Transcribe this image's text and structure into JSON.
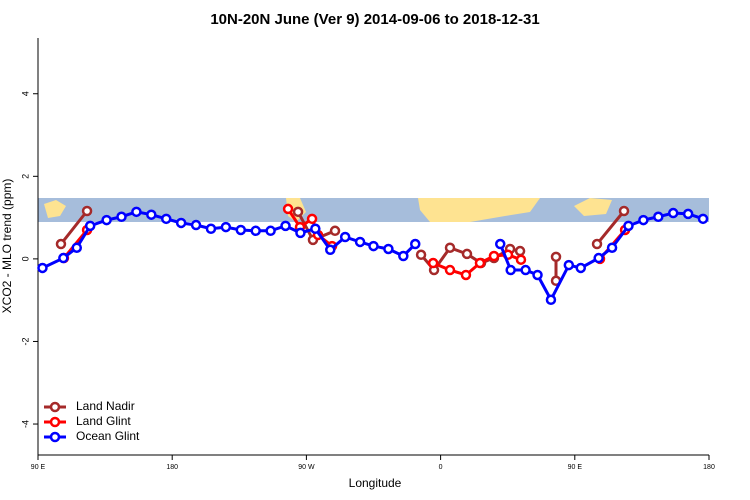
{
  "chart_data": {
    "type": "line",
    "title": "10N-20N June (Ver 9)   2014-09-06 to 2018-12-31",
    "x_label": "Longitude",
    "y_label": "XCO2 - MLO trend (ppm)",
    "xlim": [
      90,
      540
    ],
    "xticks": [
      {
        "value": 90,
        "label": "90 E"
      },
      180,
      {
        "value": 270,
        "label": "90 W"
      },
      {
        "value": 360,
        "label": "0"
      },
      {
        "value": 450,
        "label": "90 E"
      },
      {
        "value": 540,
        "label": "180"
      }
    ],
    "ylim": [
      -4.75,
      5.35
    ],
    "yticks": [
      -4,
      -2,
      0,
      2,
      4
    ],
    "legend": "bottom-left",
    "series": [
      {
        "name": "Land Nadir",
        "color": "#a52a2a",
        "x": [
          105.4,
          122.9,
          null,
          264.4,
          274.4,
          289.2,
          null,
          346.9,
          355.6,
          366.3,
          377.7,
          387.1,
          395.8,
          406.6,
          413.3,
          null,
          437.4,
          437.4,
          null,
          464.9,
          483
        ],
        "values": [
          0.36,
          1.16,
          null,
          1.14,
          0.46,
          0.68,
          null,
          0.1,
          -0.27,
          0.27,
          0.12,
          -0.1,
          0.02,
          0.24,
          0.19,
          null,
          0.05,
          -0.53,
          null,
          0.36,
          1.16
        ]
      },
      {
        "name": "Land Glint",
        "color": "#ff0000",
        "x": [
          107.4,
          122.9,
          null,
          257.7,
          265.7,
          273.8,
          277.8,
          287.2,
          null,
          355,
          366.3,
          377,
          386.4,
          395.8,
          405.2,
          413.9,
          null,
          466.9,
          483.7
        ],
        "values": [
          0.02,
          0.7,
          null,
          1.21,
          0.77,
          0.97,
          0.58,
          0.31,
          null,
          -0.1,
          -0.27,
          -0.39,
          -0.1,
          0.07,
          0.1,
          -0.02,
          null,
          0,
          0.7
        ]
      },
      {
        "name": "Ocean Glint",
        "color": "#0000ff",
        "x": [
          93,
          107,
          116,
          125,
          136,
          146,
          156,
          166,
          176,
          186,
          196,
          206,
          216,
          226,
          236,
          246,
          256,
          266,
          276,
          286,
          296,
          306,
          315,
          325,
          335,
          343,
          null,
          400,
          407,
          417,
          425,
          434,
          446,
          454,
          466,
          475,
          486,
          496,
          506,
          516,
          526,
          536
        ],
        "values": [
          -0.22,
          0.02,
          0.27,
          0.8,
          0.94,
          1.02,
          1.14,
          1.07,
          0.97,
          0.87,
          0.82,
          0.73,
          0.77,
          0.7,
          0.68,
          0.68,
          0.8,
          0.63,
          0.73,
          0.22,
          0.53,
          0.41,
          0.31,
          0.24,
          0.07,
          0.36,
          null,
          0.36,
          -0.27,
          -0.27,
          -0.39,
          -0.99,
          -0.15,
          -0.22,
          0.02,
          0.27,
          0.8,
          0.94,
          1.02,
          1.11,
          1.09,
          0.97
        ]
      }
    ]
  }
}
